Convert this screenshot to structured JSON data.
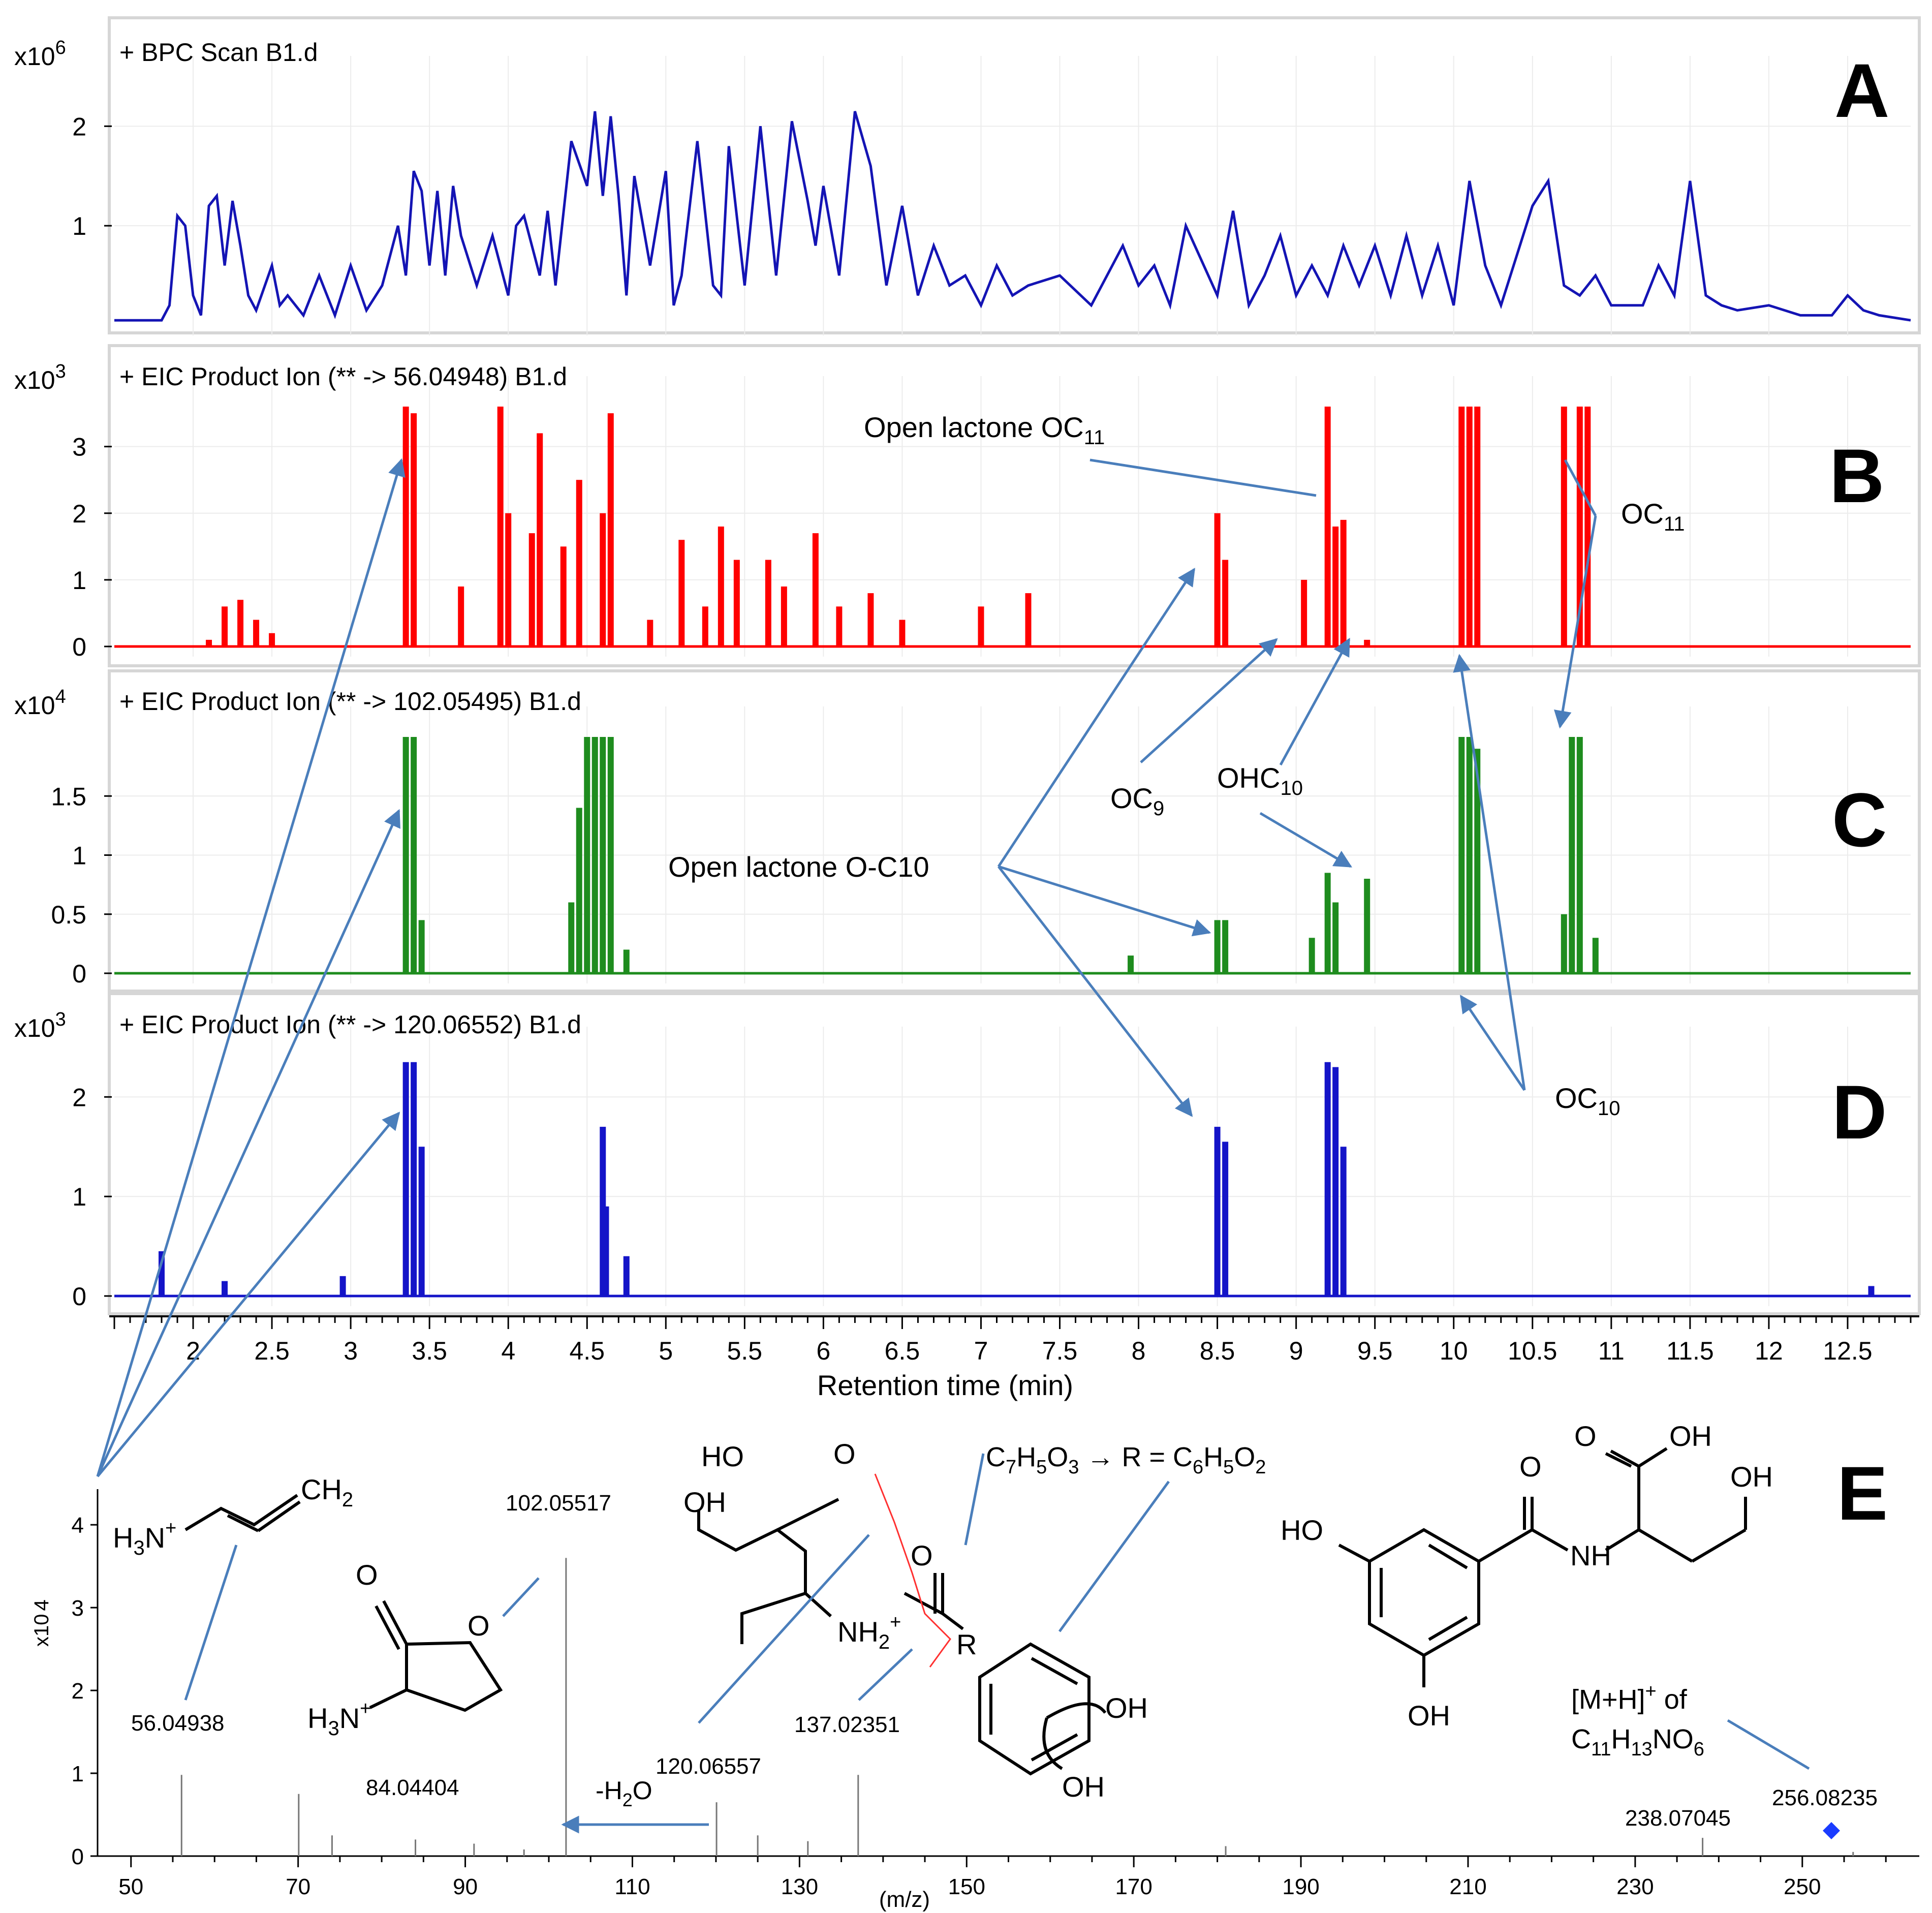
{
  "colors": {
    "bpc": "#1414b4",
    "eic56": "#ff0000",
    "eic102": "#1e8c1e",
    "eic120": "#1414c8",
    "arrow": "#4a7ebb",
    "panel_border": "#d6d6d6",
    "grid": "#ececec",
    "stick": "#777777",
    "precursor": "#1a3cff",
    "cleave": "#ff3030"
  },
  "panels": [
    {
      "letter": "A",
      "title": "+ BPC Scan B1.d",
      "multiplier": "x10",
      "exponent": "6"
    },
    {
      "letter": "B",
      "title": "+ EIC Product Ion (** -> 56.04948) B1.d",
      "multiplier": "x10",
      "exponent": "3"
    },
    {
      "letter": "C",
      "title": "+ EIC Product Ion (** -> 102.05495) B1.d",
      "multiplier": "x10",
      "exponent": "4"
    },
    {
      "letter": "D",
      "title": "+ EIC Product Ion (** -> 120.06552) B1.d",
      "multiplier": "x10",
      "exponent": "3"
    }
  ],
  "rt_axis": {
    "label": "Retention time (min)"
  },
  "ms_axis": {
    "label": "(m/z)",
    "multiplier": "x10",
    "exponent": "4",
    "letter": "E"
  },
  "annotations": {
    "open_lactone_oc11": {
      "text": "Open lactone OC",
      "sub": "11"
    },
    "oc11": {
      "text": "OC",
      "sub": "11"
    },
    "oc9": {
      "text": "OC",
      "sub": "9"
    },
    "ohc10": {
      "text": "OHC",
      "sub": "10"
    },
    "open_lactone_oc10": {
      "text": "Open lactone O-C10"
    },
    "oc10": {
      "text": "OC",
      "sub": "10"
    }
  },
  "ms_labels": {
    "p56": "56.04938",
    "p84": "84.04404",
    "p102": "102.05517",
    "p120": "120.06557",
    "p137": "137.02351",
    "p238": "238.07045",
    "p256": "256.08235",
    "water_loss": "-H",
    "water_loss_sub": "2",
    "water_loss_end": "O",
    "formula_line": "C7H5O3 → R = C6H5O2",
    "mh_line1": "[M+H]",
    "mh_sup": "+",
    "mh_of": " of",
    "mh_line2": "C11H13NO6"
  },
  "structures": {
    "allylamine": {
      "h3n": "H3N",
      "ch2": "CH2"
    },
    "lactone": {
      "o_carbonyl": "O",
      "o_ring": "O",
      "h3n": "H3N"
    },
    "acyl_hs": {
      "ho": "HO",
      "o": "O",
      "oh": "OH",
      "nh2": "NH2",
      "o2": "O",
      "r": "R"
    },
    "benzene_diol": {
      "oh1": "OH",
      "oh2": "OH"
    },
    "parent": {
      "ho": "HO",
      "o_amide": "O",
      "o_acid": "O",
      "oh_acid": "OH",
      "oh_side": "OH",
      "nh": "NH",
      "oh_ring": "OH"
    }
  },
  "chart_data": [
    {
      "type": "line",
      "title": "+ BPC Scan B1.d",
      "xlabel": "Retention time (min)",
      "ylabel": "x10 6",
      "xlim": [
        1.5,
        12.9
      ],
      "ylim": [
        0,
        2.4
      ],
      "yticks": [
        1,
        2
      ],
      "grid": true,
      "series": [
        {
          "x": [
            1.5,
            1.8,
            1.85,
            1.9,
            1.95,
            2.0,
            2.05,
            2.1,
            2.15,
            2.2,
            2.25,
            2.3,
            2.35,
            2.4,
            2.5,
            2.55,
            2.6,
            2.7,
            2.8,
            2.9,
            3.0,
            3.1,
            3.2,
            3.3,
            3.35,
            3.4,
            3.45,
            3.5,
            3.55,
            3.6,
            3.65,
            3.7,
            3.8,
            3.9,
            4.0,
            4.05,
            4.1,
            4.2,
            4.25,
            4.3,
            4.4,
            4.5,
            4.55,
            4.6,
            4.65,
            4.7,
            4.75,
            4.8,
            4.9,
            5.0,
            5.05,
            5.1,
            5.2,
            5.3,
            5.35,
            5.4,
            5.5,
            5.6,
            5.7,
            5.8,
            5.9,
            5.95,
            6.0,
            6.1,
            6.2,
            6.3,
            6.4,
            6.45,
            6.5,
            6.6,
            6.7,
            6.8,
            6.9,
            7.0,
            7.1,
            7.2,
            7.3,
            7.5,
            7.7,
            7.9,
            8.0,
            8.1,
            8.2,
            8.3,
            8.5,
            8.6,
            8.7,
            8.8,
            8.9,
            9.0,
            9.1,
            9.2,
            9.3,
            9.4,
            9.5,
            9.6,
            9.7,
            9.8,
            9.9,
            10.0,
            10.1,
            10.2,
            10.3,
            10.5,
            10.6,
            10.7,
            10.8,
            10.9,
            11.0,
            11.2,
            11.3,
            11.4,
            11.5,
            11.6,
            11.7,
            11.8,
            12.0,
            12.2,
            12.4,
            12.5,
            12.6,
            12.7,
            12.9
          ],
          "values": [
            0.05,
            0.05,
            0.2,
            1.1,
            1.0,
            0.3,
            0.1,
            1.2,
            1.3,
            0.6,
            1.25,
            0.8,
            0.3,
            0.15,
            0.6,
            0.2,
            0.3,
            0.1,
            0.5,
            0.1,
            0.6,
            0.15,
            0.4,
            1.0,
            0.5,
            1.55,
            1.35,
            0.6,
            1.35,
            0.5,
            1.4,
            0.9,
            0.4,
            0.9,
            0.3,
            1.0,
            1.1,
            0.5,
            1.15,
            0.4,
            1.85,
            1.4,
            2.15,
            1.3,
            2.1,
            1.3,
            0.3,
            1.5,
            0.6,
            1.55,
            0.2,
            0.5,
            1.85,
            0.4,
            0.3,
            1.8,
            0.4,
            2.0,
            0.5,
            2.05,
            1.25,
            0.8,
            1.4,
            0.5,
            2.15,
            1.6,
            0.4,
            0.8,
            1.2,
            0.3,
            0.8,
            0.4,
            0.5,
            0.2,
            0.6,
            0.3,
            0.4,
            0.5,
            0.2,
            0.8,
            0.4,
            0.6,
            0.2,
            1.0,
            0.3,
            1.15,
            0.2,
            0.5,
            0.9,
            0.3,
            0.6,
            0.3,
            0.8,
            0.4,
            0.8,
            0.3,
            0.9,
            0.3,
            0.8,
            0.2,
            1.45,
            0.6,
            0.2,
            1.2,
            1.45,
            0.4,
            0.3,
            0.5,
            0.2,
            0.2,
            0.6,
            0.3,
            1.45,
            0.3,
            0.2,
            0.15,
            0.2,
            0.1,
            0.1,
            0.3,
            0.15,
            0.1,
            0.05
          ]
        }
      ]
    },
    {
      "type": "line",
      "title": "+ EIC Product Ion (** -> 56.04948) B1.d",
      "xlabel": "Retention time (min)",
      "ylabel": "x10 3",
      "xlim": [
        1.5,
        12.9
      ],
      "ylim": [
        0,
        3.6
      ],
      "yticks": [
        0,
        1,
        2,
        3
      ],
      "grid": true,
      "series": [
        {
          "x": [
            2.1,
            2.2,
            2.3,
            2.4,
            2.5,
            3.35,
            3.4,
            3.7,
            3.95,
            4.0,
            4.15,
            4.2,
            4.35,
            4.45,
            4.6,
            4.65,
            4.9,
            5.1,
            5.25,
            5.35,
            5.45,
            5.65,
            5.75,
            5.95,
            6.1,
            6.3,
            6.5,
            7.0,
            7.3,
            8.5,
            8.55,
            9.05,
            9.2,
            9.25,
            9.3,
            9.45,
            10.05,
            10.1,
            10.15,
            10.7,
            10.8,
            10.85
          ],
          "values": [
            0.1,
            0.6,
            0.7,
            0.4,
            0.2,
            3.6,
            3.5,
            0.9,
            3.6,
            2.0,
            1.7,
            3.2,
            1.5,
            2.5,
            2.0,
            3.5,
            0.4,
            1.6,
            0.6,
            1.8,
            1.3,
            1.3,
            0.9,
            1.7,
            0.6,
            0.8,
            0.4,
            0.6,
            0.8,
            2.0,
            1.3,
            1.0,
            3.6,
            1.8,
            1.9,
            0.1,
            3.6,
            3.6,
            3.6,
            3.6,
            3.6,
            3.6
          ]
        }
      ]
    },
    {
      "type": "line",
      "title": "+ EIC Product Ion (** -> 102.05495) B1.d",
      "xlabel": "Retention time (min)",
      "ylabel": "x10 4",
      "xlim": [
        1.5,
        12.9
      ],
      "ylim": [
        0,
        2.0
      ],
      "yticks": [
        0,
        0.5,
        1,
        1.5
      ],
      "grid": true,
      "series": [
        {
          "x": [
            3.35,
            3.4,
            3.45,
            4.4,
            4.45,
            4.5,
            4.55,
            4.6,
            4.65,
            4.75,
            7.95,
            8.5,
            8.55,
            9.1,
            9.2,
            9.25,
            9.45,
            10.05,
            10.1,
            10.15,
            10.7,
            10.75,
            10.8,
            10.9
          ],
          "values": [
            2.0,
            2.0,
            0.45,
            0.6,
            1.4,
            2.0,
            2.0,
            2.0,
            2.0,
            0.2,
            0.15,
            0.45,
            0.45,
            0.3,
            0.85,
            0.6,
            0.8,
            2.0,
            2.0,
            1.9,
            0.5,
            2.0,
            2.0,
            0.3
          ]
        }
      ]
    },
    {
      "type": "line",
      "title": "+ EIC Product Ion (** -> 120.06552) B1.d",
      "xlabel": "Retention time (min)",
      "ylabel": "x10 3",
      "xlim": [
        1.5,
        12.9
      ],
      "ylim": [
        0,
        2.4
      ],
      "yticks": [
        0,
        1,
        2
      ],
      "grid": true,
      "series": [
        {
          "x": [
            1.8,
            2.2,
            2.95,
            3.35,
            3.4,
            3.45,
            4.6,
            4.62,
            4.75,
            8.5,
            8.55,
            9.2,
            9.25,
            9.3,
            12.65
          ],
          "values": [
            0.45,
            0.15,
            0.2,
            2.35,
            2.35,
            1.5,
            1.7,
            0.9,
            0.4,
            1.7,
            1.55,
            2.35,
            2.3,
            1.5,
            0.1
          ]
        }
      ]
    },
    {
      "type": "bar",
      "title": "",
      "xlabel": "(m/z)",
      "ylabel": "x10 4",
      "xlim": [
        46,
        264
      ],
      "ylim": [
        0,
        4.4
      ],
      "xticks": [
        50,
        70,
        90,
        110,
        130,
        150,
        170,
        190,
        210,
        230,
        250
      ],
      "yticks": [
        0,
        1,
        2,
        3,
        4
      ],
      "x": [
        56.05,
        70.07,
        74.06,
        84.04,
        91.05,
        97.03,
        102.06,
        120.07,
        125.0,
        131.0,
        137.02,
        181.0,
        238.07,
        256.08
      ],
      "values": [
        0.98,
        0.75,
        0.25,
        0.2,
        0.15,
        0.08,
        3.6,
        0.65,
        0.25,
        0.18,
        0.98,
        0.12,
        0.22,
        0.05
      ]
    }
  ]
}
